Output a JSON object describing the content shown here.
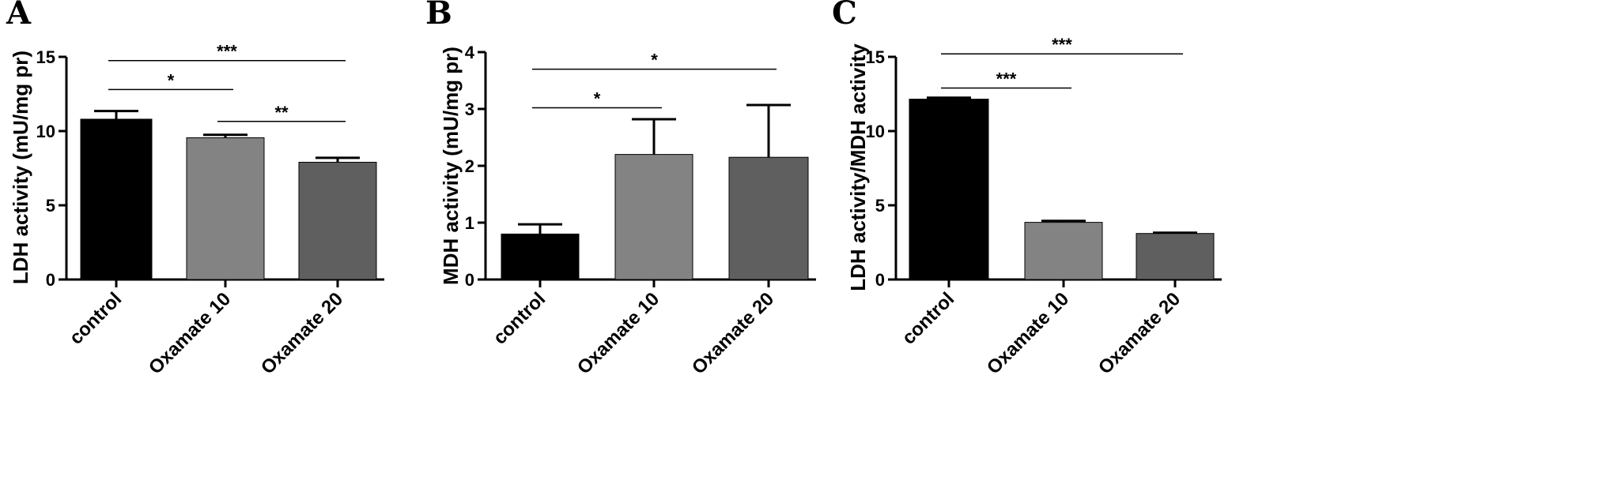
{
  "chart_data": [
    {
      "type": "bar",
      "panel": "A",
      "ylabel": "LDH activity (mU/mg pr)",
      "categories": [
        "control",
        "Oxamate 10",
        "Oxamate 20"
      ],
      "values": [
        10.8,
        9.55,
        7.9
      ],
      "errors": [
        0.55,
        0.2,
        0.3
      ],
      "colors": [
        "#000000",
        "#838383",
        "#5f5f5f"
      ],
      "ylim": [
        0,
        15
      ],
      "yticks": [
        0,
        5,
        10,
        15
      ],
      "significance": [
        {
          "from": 0,
          "to": 2,
          "label": "***",
          "y": 14.75
        },
        {
          "from": 0,
          "to": 1,
          "label": "*",
          "y": 12.8
        },
        {
          "from": 1,
          "to": 2,
          "label": "**",
          "y": 10.65
        }
      ]
    },
    {
      "type": "bar",
      "panel": "B",
      "ylabel": "MDH activity (mU/mg pr)",
      "categories": [
        "control",
        "Oxamate 10",
        "Oxamate 20"
      ],
      "values": [
        0.8,
        2.2,
        2.15
      ],
      "errors": [
        0.17,
        0.62,
        0.92
      ],
      "colors": [
        "#000000",
        "#838383",
        "#5f5f5f"
      ],
      "ylim": [
        0,
        4
      ],
      "yticks": [
        0,
        1,
        2,
        3,
        4
      ],
      "significance": [
        {
          "from": 0,
          "to": 2,
          "label": "*",
          "y": 3.7
        },
        {
          "from": 0,
          "to": 1,
          "label": "*",
          "y": 3.02
        }
      ]
    },
    {
      "type": "bar",
      "panel": "C",
      "ylabel": "LDH activity/MDH activity",
      "categories": [
        "control",
        "Oxamate 10",
        "Oxamate 20"
      ],
      "values": [
        12.15,
        3.85,
        3.1
      ],
      "errors": [
        0.1,
        0.1,
        0.05
      ],
      "colors": [
        "#000000",
        "#838383",
        "#5f5f5f"
      ],
      "ylim": [
        0,
        15
      ],
      "yticks": [
        0,
        5,
        10,
        15
      ],
      "significance": [
        {
          "from": 0,
          "to": 2,
          "label": "***",
          "y": 15.2
        },
        {
          "from": 0,
          "to": 1,
          "label": "***",
          "y": 12.9
        }
      ]
    }
  ]
}
